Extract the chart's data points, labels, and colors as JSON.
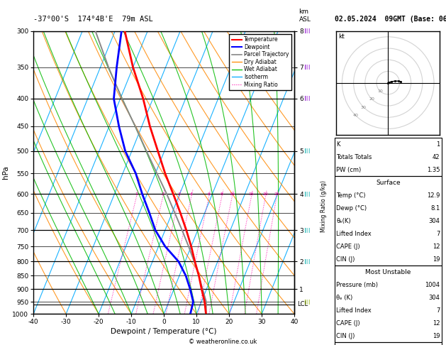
{
  "title_left": "-37°00'S  174°4B'E  79m ASL",
  "title_right": "02.05.2024  09GMT (Base: 06)",
  "xlabel": "Dewpoint / Temperature (°C)",
  "ylabel_left": "hPa",
  "pressure_levels": [
    300,
    350,
    400,
    450,
    500,
    550,
    600,
    650,
    700,
    750,
    800,
    850,
    900,
    950,
    1000
  ],
  "pressure_major": [
    300,
    400,
    500,
    600,
    700,
    800,
    900,
    1000
  ],
  "temp_min": -40,
  "temp_max": 40,
  "skew": 35,
  "background_color": "#ffffff",
  "temp_profile_T": [
    12.9,
    11.0,
    8.5,
    6.0,
    3.0,
    0.0,
    -3.5,
    -7.5,
    -12.0,
    -17.0,
    -22.0,
    -27.5,
    -33.0,
    -40.0,
    -47.0
  ],
  "temp_profile_P": [
    1000,
    950,
    900,
    850,
    800,
    750,
    700,
    650,
    600,
    550,
    500,
    450,
    400,
    350,
    300
  ],
  "dewp_profile_T": [
    8.1,
    7.5,
    5.0,
    2.0,
    -2.0,
    -8.0,
    -13.0,
    -17.0,
    -21.5,
    -26.0,
    -32.0,
    -37.0,
    -42.0,
    -45.0,
    -48.0
  ],
  "dewp_profile_P": [
    1000,
    950,
    900,
    850,
    800,
    750,
    700,
    650,
    600,
    550,
    500,
    450,
    400,
    350,
    300
  ],
  "parcel_T": [
    12.9,
    11.5,
    8.8,
    6.0,
    2.8,
    -0.8,
    -4.8,
    -9.2,
    -14.0,
    -19.5,
    -25.5,
    -32.0,
    -39.5,
    -47.5,
    -56.0
  ],
  "parcel_P": [
    1000,
    950,
    900,
    850,
    800,
    750,
    700,
    650,
    600,
    550,
    500,
    450,
    400,
    350,
    300
  ],
  "km_ticks": [
    1,
    2,
    3,
    4,
    5,
    6,
    7,
    8
  ],
  "km_pressures": [
    900,
    800,
    700,
    600,
    500,
    400,
    350,
    300
  ],
  "mixing_ratio_vals": [
    1,
    2,
    3,
    4,
    6,
    8,
    10,
    15,
    20,
    25
  ],
  "lcl_pressure": 960,
  "color_temp": "#ff0000",
  "color_dewp": "#0000ff",
  "color_parcel": "#888888",
  "color_dry_adiabat": "#ff8800",
  "color_wet_adiabat": "#00bb00",
  "color_isotherm": "#00aaff",
  "color_mixing": "#ff00aa",
  "wind_pressures": [
    300,
    350,
    400,
    500,
    600,
    700,
    800,
    950
  ],
  "wind_colors": [
    "#8800cc",
    "#8800cc",
    "#8800cc",
    "#00aaaa",
    "#00aaaa",
    "#00aaaa",
    "#00aaaa",
    "#88aa00"
  ],
  "copyright": "© weatheronline.co.uk"
}
